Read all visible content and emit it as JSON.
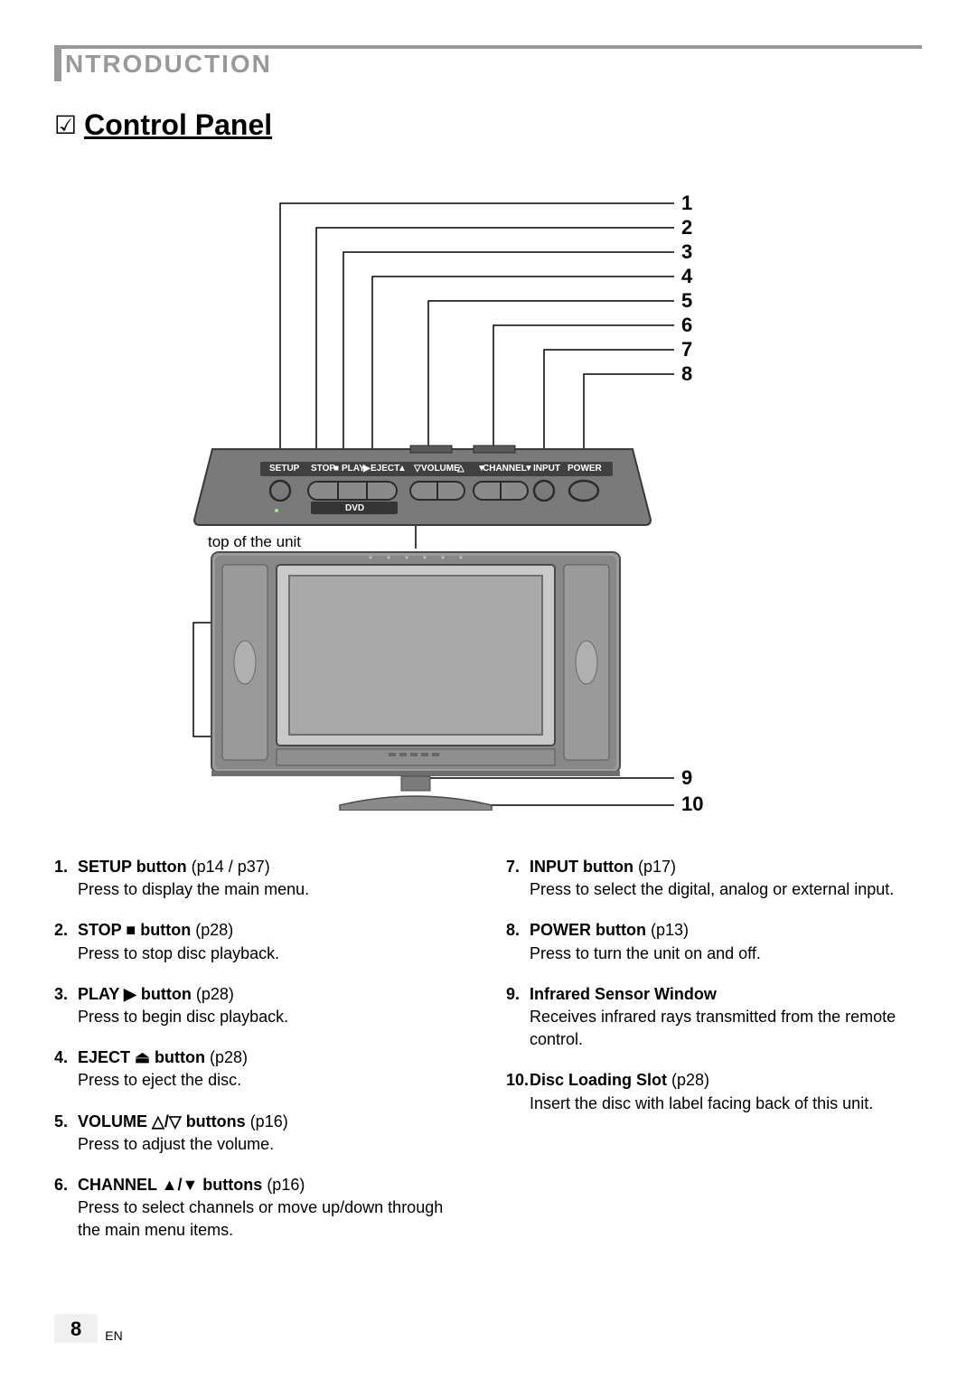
{
  "section_header": "NTRODUCTION",
  "page_title": "Control Panel",
  "diagram": {
    "top_caption": "top of the unit",
    "panel_labels": [
      "SETUP",
      "STOP",
      "PLAY",
      "EJECT",
      "VOLUME",
      "CHANNEL",
      "INPUT",
      "POWER",
      "DVD"
    ],
    "callouts_right": [
      "1",
      "2",
      "3",
      "4",
      "5",
      "6",
      "7",
      "8",
      "9",
      "10"
    ],
    "colors": {
      "panel_body": "#7a7a7a",
      "panel_inner": "#595959",
      "button_fill": "#8a8a8a",
      "button_stroke": "#2b2b2b",
      "tv_outer": "#9c9c9c",
      "tv_shadow": "#6e6e6e",
      "tv_edge": "#4d4d4d",
      "screen_outer": "#c9c9c9",
      "screen_inner": "#a9a9a9",
      "speaker": "#888888",
      "line": "#000000"
    }
  },
  "items_left": [
    {
      "n": "1.",
      "title": "SETUP button",
      "page": "(p14 / p37)",
      "desc": "Press to display the main menu."
    },
    {
      "n": "2.",
      "title": "STOP ■ button",
      "page": "(p28)",
      "desc": "Press to stop disc playback."
    },
    {
      "n": "3.",
      "title": "PLAY ▶ button",
      "page": "(p28)",
      "desc": "Press to begin disc playback."
    },
    {
      "n": "4.",
      "title": "EJECT ⏏ button",
      "page": "(p28)",
      "desc": "Press to eject the disc."
    },
    {
      "n": "5.",
      "title": "VOLUME △/▽ buttons",
      "page": "(p16)",
      "desc": "Press to adjust the volume."
    },
    {
      "n": "6.",
      "title": "CHANNEL ▲/▼ buttons",
      "page": "(p16)",
      "desc": "Press to select channels or move up/down through the main menu items."
    }
  ],
  "items_right": [
    {
      "n": "7.",
      "title": "INPUT button",
      "page": "(p17)",
      "desc": "Press to select the digital, analog or external input."
    },
    {
      "n": "8.",
      "title": "POWER button",
      "page": "(p13)",
      "desc": "Press to turn the unit on and off."
    },
    {
      "n": "9.",
      "title": "Infrared Sensor Window",
      "page": "",
      "desc": "Receives infrared rays transmitted from the remote control."
    },
    {
      "n": "10.",
      "title": "Disc Loading Slot",
      "page": "(p28)",
      "desc": "Insert the disc with label facing back of this unit."
    }
  ],
  "footer": {
    "page": "8",
    "lang": "EN"
  }
}
